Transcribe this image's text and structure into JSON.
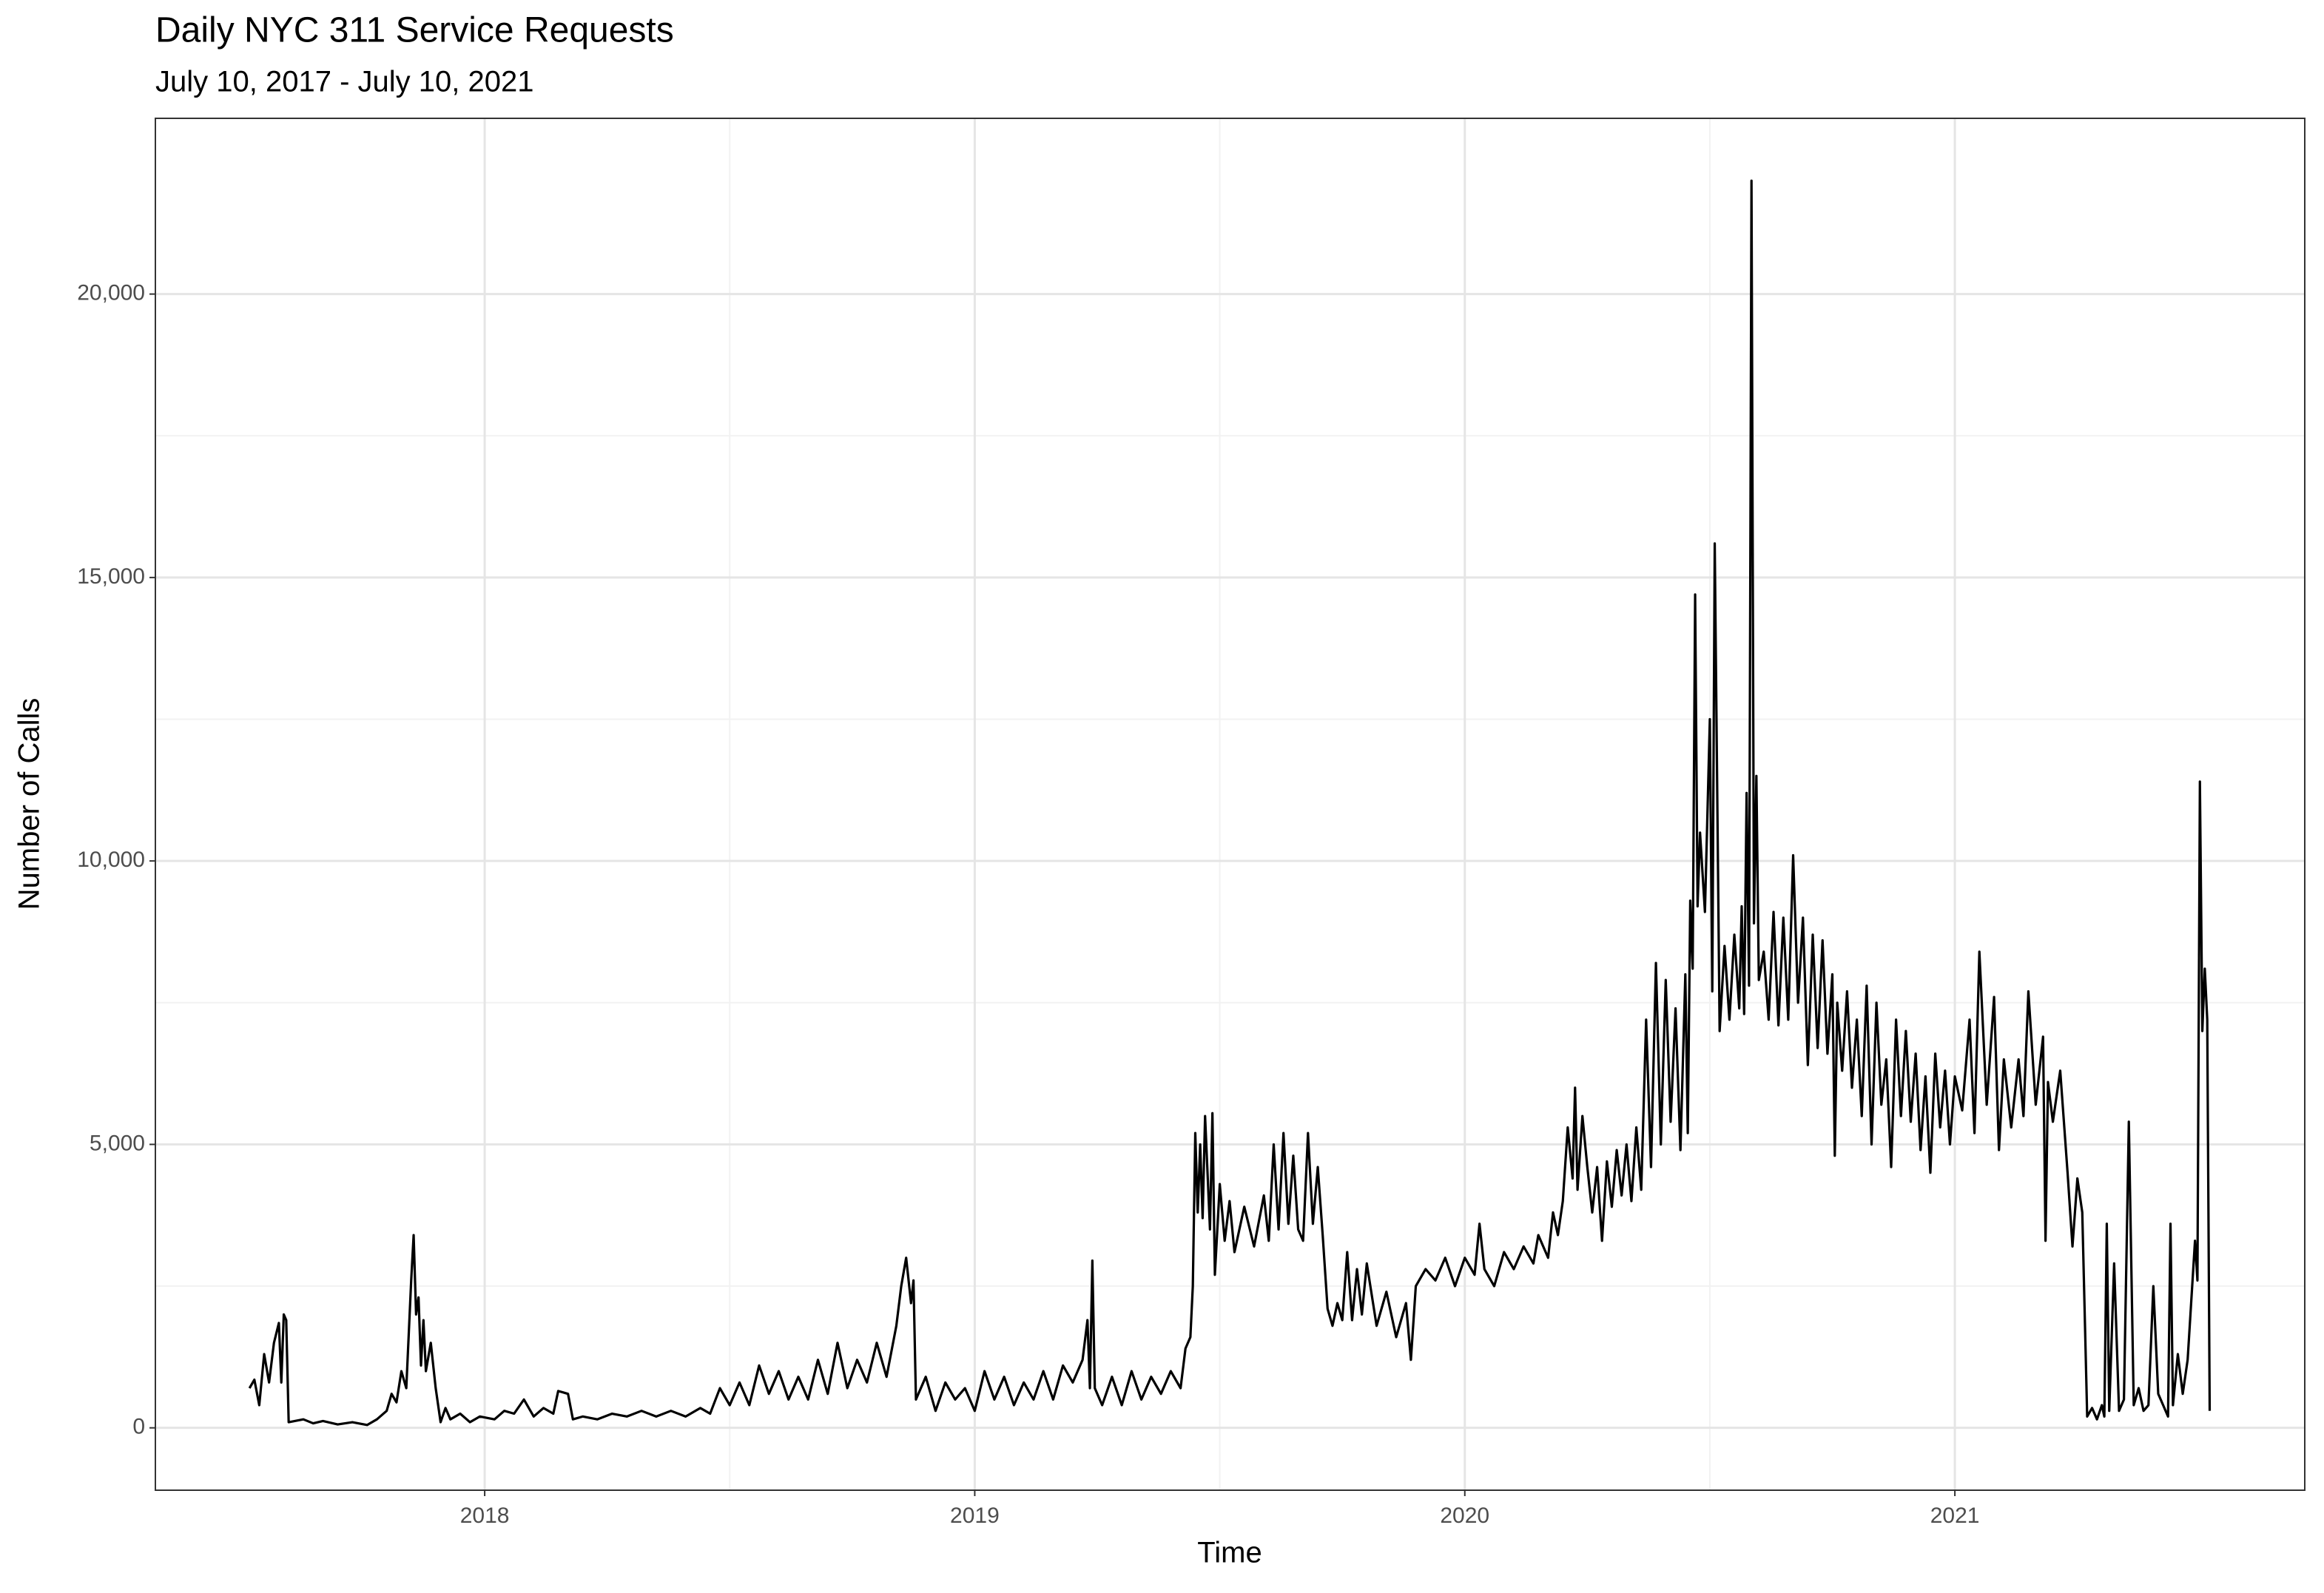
{
  "chart_data": {
    "type": "line",
    "title": "Daily NYC 311 Service Requests",
    "subtitle": "July 10, 2017 - July 10, 2021",
    "x_label": "Time",
    "y_label": "Number of Calls",
    "color": "#000000",
    "grid": true,
    "xlim": [
      2017.328,
      2021.714
    ],
    "ylim": [
      -1100,
      23100
    ],
    "xticks": [
      2018,
      2019,
      2020,
      2021
    ],
    "yticks": [
      0,
      {
        "value": 5000,
        "label": "5,000"
      },
      {
        "value": 10000,
        "label": "10,000"
      },
      {
        "value": 15000,
        "label": "15,000"
      },
      {
        "value": 20000,
        "label": "20,000"
      }
    ],
    "x": [
      2017.52,
      2017.53,
      2017.54,
      2017.55,
      2017.56,
      2017.57,
      2017.58,
      2017.585,
      2017.59,
      2017.595,
      2017.6,
      2017.63,
      2017.65,
      2017.67,
      2017.7,
      2017.73,
      2017.76,
      2017.78,
      2017.8,
      2017.81,
      2017.82,
      2017.83,
      2017.84,
      2017.85,
      2017.855,
      2017.86,
      2017.865,
      2017.87,
      2017.875,
      2017.88,
      2017.89,
      2017.9,
      2017.91,
      2017.92,
      2017.93,
      2017.95,
      2017.97,
      2017.99,
      2018.02,
      2018.04,
      2018.06,
      2018.08,
      2018.1,
      2018.12,
      2018.14,
      2018.15,
      2018.17,
      2018.18,
      2018.2,
      2018.23,
      2018.26,
      2018.29,
      2018.32,
      2018.35,
      2018.38,
      2018.41,
      2018.44,
      2018.46,
      2018.48,
      2018.5,
      2018.52,
      2018.54,
      2018.56,
      2018.58,
      2018.6,
      2018.62,
      2018.64,
      2018.66,
      2018.68,
      2018.7,
      2018.72,
      2018.74,
      2018.76,
      2018.78,
      2018.8,
      2018.82,
      2018.84,
      2018.85,
      2018.86,
      2018.87,
      2018.875,
      2018.88,
      2018.9,
      2018.92,
      2018.94,
      2018.96,
      2018.98,
      2019,
      2019.02,
      2019.04,
      2019.06,
      2019.08,
      2019.1,
      2019.12,
      2019.14,
      2019.16,
      2019.18,
      2019.2,
      2019.22,
      2019.23,
      2019.235,
      2019.24,
      2019.245,
      2019.26,
      2019.28,
      2019.3,
      2019.32,
      2019.34,
      2019.36,
      2019.38,
      2019.4,
      2019.42,
      2019.43,
      2019.44,
      2019.445,
      2019.45,
      2019.455,
      2019.46,
      2019.465,
      2019.47,
      2019.48,
      2019.485,
      2019.49,
      2019.5,
      2019.51,
      2019.52,
      2019.53,
      2019.55,
      2019.57,
      2019.59,
      2019.6,
      2019.61,
      2019.62,
      2019.63,
      2019.64,
      2019.65,
      2019.66,
      2019.67,
      2019.68,
      2019.69,
      2019.7,
      2019.71,
      2019.72,
      2019.73,
      2019.74,
      2019.75,
      2019.76,
      2019.77,
      2019.78,
      2019.79,
      2019.8,
      2019.82,
      2019.84,
      2019.86,
      2019.88,
      2019.89,
      2019.9,
      2019.92,
      2019.94,
      2019.96,
      2019.98,
      2020,
      2020.02,
      2020.03,
      2020.04,
      2020.06,
      2020.08,
      2020.1,
      2020.12,
      2020.14,
      2020.15,
      2020.17,
      2020.18,
      2020.19,
      2020.2,
      2020.21,
      2020.22,
      2020.225,
      2020.23,
      2020.24,
      2020.25,
      2020.26,
      2020.27,
      2020.28,
      2020.29,
      2020.3,
      2020.31,
      2020.32,
      2020.33,
      2020.34,
      2020.35,
      2020.36,
      2020.37,
      2020.38,
      2020.39,
      2020.4,
      2020.41,
      2020.42,
      2020.43,
      2020.44,
      2020.45,
      2020.455,
      2020.46,
      2020.465,
      2020.47,
      2020.475,
      2020.48,
      2020.49,
      2020.5,
      2020.505,
      2020.51,
      2020.52,
      2020.53,
      2020.54,
      2020.55,
      2020.56,
      2020.565,
      2020.57,
      2020.575,
      2020.58,
      2020.585,
      2020.59,
      2020.595,
      2020.6,
      2020.61,
      2020.62,
      2020.63,
      2020.64,
      2020.65,
      2020.66,
      2020.67,
      2020.68,
      2020.69,
      2020.7,
      2020.71,
      2020.72,
      2020.73,
      2020.74,
      2020.75,
      2020.755,
      2020.76,
      2020.77,
      2020.78,
      2020.79,
      2020.8,
      2020.81,
      2020.82,
      2020.83,
      2020.84,
      2020.85,
      2020.86,
      2020.87,
      2020.88,
      2020.89,
      2020.9,
      2020.91,
      2020.92,
      2020.93,
      2020.94,
      2020.95,
      2020.96,
      2020.97,
      2020.98,
      2020.99,
      2021,
      2021.015,
      2021.03,
      2021.04,
      2021.05,
      2021.065,
      2021.08,
      2021.09,
      2021.1,
      2021.115,
      2021.13,
      2021.14,
      2021.15,
      2021.165,
      2021.18,
      2021.185,
      2021.19,
      2021.2,
      2021.215,
      2021.23,
      2021.24,
      2021.25,
      2021.26,
      2021.27,
      2021.28,
      2021.29,
      2021.3,
      2021.305,
      2021.31,
      2021.315,
      2021.325,
      2021.335,
      2021.345,
      2021.355,
      2021.365,
      2021.375,
      2021.385,
      2021.395,
      2021.405,
      2021.415,
      2021.425,
      2021.435,
      2021.44,
      2021.445,
      2021.455,
      2021.465,
      2021.475,
      2021.485,
      2021.49,
      2021.495,
      2021.5,
      2021.505,
      2021.51,
      2021.515,
      2021.52
    ],
    "values": [
      700,
      850,
      400,
      1300,
      800,
      1500,
      1850,
      800,
      2000,
      1900,
      100,
      150,
      80,
      120,
      60,
      100,
      50,
      150,
      300,
      600,
      450,
      1000,
      700,
      2600,
      3400,
      2000,
      2300,
      1100,
      1900,
      1000,
      1500,
      700,
      100,
      350,
      150,
      250,
      100,
      200,
      150,
      300,
      250,
      500,
      200,
      350,
      250,
      650,
      600,
      150,
      200,
      150,
      250,
      200,
      300,
      200,
      300,
      200,
      350,
      250,
      700,
      400,
      800,
      400,
      1100,
      600,
      1000,
      500,
      900,
      500,
      1200,
      600,
      1500,
      700,
      1200,
      800,
      1500,
      900,
      1800,
      2500,
      3000,
      2200,
      2600,
      500,
      900,
      300,
      800,
      500,
      700,
      300,
      1000,
      500,
      900,
      400,
      800,
      500,
      1000,
      500,
      1100,
      800,
      1200,
      1900,
      700,
      2950,
      700,
      400,
      900,
      400,
      1000,
      500,
      900,
      600,
      1000,
      700,
      1400,
      1600,
      2500,
      5200,
      3800,
      5000,
      3700,
      5500,
      3500,
      5550,
      2700,
      4300,
      3300,
      4000,
      3100,
      3900,
      3200,
      4100,
      3300,
      5000,
      3500,
      5200,
      3600,
      4800,
      3500,
      3300,
      5200,
      3600,
      4600,
      3400,
      2100,
      1800,
      2200,
      1900,
      3100,
      1900,
      2800,
      2000,
      2900,
      1800,
      2400,
      1600,
      2200,
      1200,
      2500,
      2800,
      2600,
      3000,
      2500,
      3000,
      2700,
      3600,
      2800,
      2500,
      3100,
      2800,
      3200,
      2900,
      3400,
      3000,
      3800,
      3400,
      4000,
      5300,
      4400,
      6000,
      4200,
      5500,
      4600,
      3800,
      4600,
      3300,
      4700,
      3900,
      4900,
      4100,
      5000,
      4000,
      5300,
      4200,
      7200,
      4600,
      8200,
      5000,
      7900,
      5400,
      7400,
      4900,
      8000,
      5200,
      9300,
      8100,
      14700,
      9200,
      10500,
      9100,
      12500,
      7700,
      15600,
      7000,
      8500,
      7200,
      8700,
      7400,
      9200,
      7300,
      11200,
      7800,
      22000,
      8900,
      11500,
      7900,
      8400,
      7200,
      9100,
      7100,
      9000,
      7200,
      10100,
      7500,
      9000,
      6400,
      8700,
      6700,
      8600,
      6600,
      8000,
      4800,
      7500,
      6300,
      7700,
      6000,
      7200,
      5500,
      7800,
      5000,
      7500,
      5700,
      6500,
      4600,
      7200,
      5500,
      7000,
      5400,
      6600,
      4900,
      6200,
      4500,
      6600,
      5300,
      6300,
      5000,
      6200,
      5600,
      7200,
      5200,
      8400,
      5700,
      7600,
      4900,
      6500,
      5300,
      6500,
      5500,
      7700,
      5700,
      6900,
      3300,
      6100,
      5400,
      6300,
      4500,
      3200,
      4400,
      3800,
      200,
      350,
      150,
      400,
      200,
      3600,
      300,
      2900,
      300,
      500,
      5400,
      400,
      700,
      300,
      400,
      2500,
      600,
      400,
      200,
      3600,
      400,
      1300,
      600,
      1200,
      2600,
      3300,
      2600,
      11400,
      7000,
      8100,
      7200,
      300
    ]
  }
}
